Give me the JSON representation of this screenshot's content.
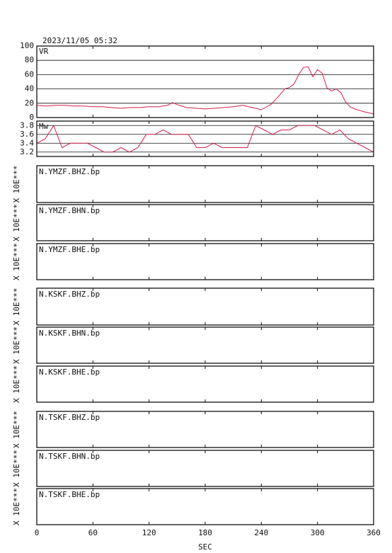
{
  "chart_data": [
    {
      "type": "line",
      "title": "2023/11/05 05:32",
      "label": "VR",
      "x": [
        0,
        10,
        20,
        30,
        40,
        50,
        60,
        70,
        80,
        90,
        100,
        110,
        120,
        130,
        140,
        145,
        150,
        160,
        170,
        180,
        190,
        200,
        210,
        220,
        230,
        240,
        250,
        260,
        265,
        270,
        275,
        280,
        285,
        290,
        295,
        300,
        305,
        310,
        315,
        320,
        325,
        330,
        335,
        340,
        350,
        360
      ],
      "series": [
        {
          "name": "VR",
          "color": "#d0204a",
          "values": [
            17,
            16,
            17,
            17,
            16,
            16,
            15,
            15,
            14,
            13,
            14,
            14,
            15,
            15,
            17,
            21,
            18,
            14,
            13,
            12,
            13,
            14,
            15,
            17,
            14,
            11,
            18,
            32,
            40,
            42,
            47,
            60,
            70,
            71,
            57,
            67,
            62,
            42,
            37,
            40,
            35,
            22,
            15,
            12,
            8,
            5
          ]
        }
      ],
      "ylim": [
        0,
        100
      ],
      "yticks": [
        0,
        20,
        40,
        60,
        80,
        100
      ],
      "grid": true
    },
    {
      "type": "line",
      "label": "Mw",
      "x": [
        0,
        9,
        18,
        27,
        36,
        45,
        54,
        63,
        72,
        81,
        90,
        99,
        108,
        117,
        126,
        135,
        144,
        153,
        162,
        171,
        180,
        189,
        198,
        207,
        216,
        225,
        234,
        243,
        252,
        261,
        270,
        279,
        288,
        297,
        306,
        315,
        324,
        333,
        342,
        351,
        360
      ],
      "series": [
        {
          "name": "Mw",
          "color": "#d0204a",
          "values": [
            3.4,
            3.5,
            3.8,
            3.3,
            3.4,
            3.4,
            3.4,
            3.3,
            3.2,
            3.2,
            3.3,
            3.2,
            3.3,
            3.6,
            3.6,
            3.7,
            3.6,
            3.6,
            3.6,
            3.3,
            3.3,
            3.4,
            3.3,
            3.3,
            3.3,
            3.3,
            3.8,
            3.7,
            3.6,
            3.7,
            3.7,
            3.8,
            3.8,
            3.8,
            3.7,
            3.6,
            3.7,
            3.5,
            3.4,
            3.3,
            3.2
          ]
        }
      ],
      "ylim": [
        3.1,
        3.9
      ],
      "yticks": [
        3.2,
        3.4,
        3.6,
        3.8
      ],
      "grid": true
    }
  ],
  "traces": [
    {
      "label": "N.YMZF.BHZ.bp",
      "unit": "X 10E***"
    },
    {
      "label": "N.YMZF.BHN.bp",
      "unit": "X 10E***"
    },
    {
      "label": "N.YMZF.BHE.bp",
      "unit": "X 10E***"
    },
    {
      "label": "N.KSKF.BHZ.bp",
      "unit": "X 10E***"
    },
    {
      "label": "N.KSKF.BHN.bp",
      "unit": "X 10E***"
    },
    {
      "label": "N.KSKF.BHE.bp",
      "unit": "X 10E***"
    },
    {
      "label": "N.TSKF.BHZ.bp",
      "unit": "X 10E***"
    },
    {
      "label": "N.TSKF.BHN.bp",
      "unit": "X 10E***"
    },
    {
      "label": "N.TSKF.BHE.bp",
      "unit": "X 10E***"
    }
  ],
  "x_axis": {
    "label": "SEC",
    "xlim": [
      0,
      360
    ],
    "xticks": [
      0,
      60,
      120,
      180,
      240,
      300,
      360
    ]
  }
}
